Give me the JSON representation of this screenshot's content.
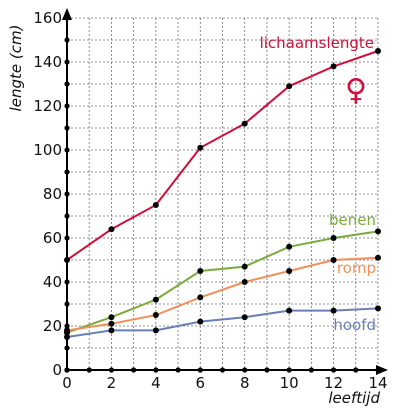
{
  "chart_data": {
    "type": "line",
    "xlabel": "leeftijd",
    "ylabel": "lengte (cm)",
    "xlim": [
      0,
      14
    ],
    "ylim": [
      0,
      160
    ],
    "xticks": [
      0,
      2,
      4,
      6,
      8,
      10,
      12,
      14
    ],
    "yticks": [
      0,
      20,
      40,
      60,
      80,
      100,
      120,
      140,
      160
    ],
    "grid": true,
    "symbol": "♀",
    "symbol_color": "#d0103a",
    "series": [
      {
        "name": "lichaamslengte",
        "color": "#d0103a",
        "x": [
          0,
          2,
          4,
          6,
          8,
          10,
          12,
          14
        ],
        "values": [
          50,
          64,
          75,
          101,
          112,
          129,
          138,
          145
        ]
      },
      {
        "name": "benen",
        "color": "#7aab3c",
        "x": [
          0,
          2,
          4,
          6,
          8,
          10,
          12,
          14
        ],
        "values": [
          17,
          24,
          32,
          45,
          47,
          56,
          60,
          63
        ]
      },
      {
        "name": "romp",
        "color": "#f0905a",
        "x": [
          0,
          2,
          4,
          6,
          8,
          10,
          12,
          14
        ],
        "values": [
          18,
          21,
          25,
          33,
          40,
          45,
          50,
          51
        ]
      },
      {
        "name": "hoofd",
        "color": "#6a7fb8",
        "x": [
          0,
          2,
          4,
          6,
          8,
          10,
          12,
          14
        ],
        "values": [
          15,
          18,
          18,
          22,
          24,
          27,
          27,
          28
        ]
      }
    ]
  }
}
